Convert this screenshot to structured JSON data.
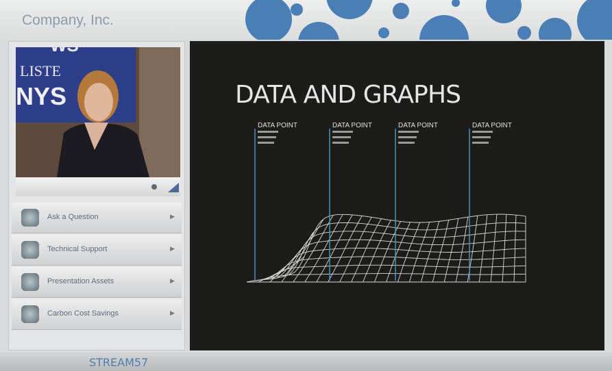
{
  "header": {
    "logo": "Company, Inc."
  },
  "video": {
    "backdrop_texts": [
      "WS",
      "LISTE",
      "NYS"
    ]
  },
  "menu": {
    "items": [
      "Ask a Question",
      "Technical Support",
      "Presentation Assets",
      "Carbon Cost Savings"
    ]
  },
  "slide": {
    "title": "DATA AND GRAPHS",
    "data_points": [
      "DATA POINT",
      "DATA POINT",
      "DATA POINT",
      "DATA POINT"
    ]
  },
  "footer": {
    "brand": "STREAM57"
  }
}
